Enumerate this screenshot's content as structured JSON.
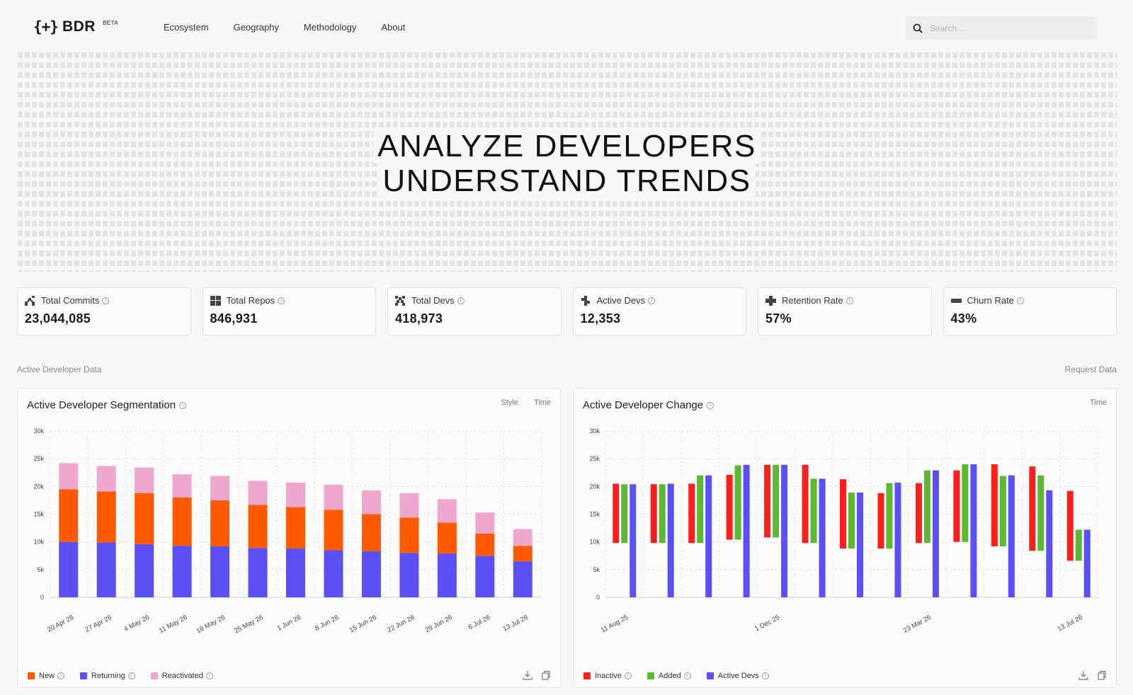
{
  "nav": {
    "logo_mark": "{+}",
    "logo_text": "BDR",
    "logo_badge": "BETA",
    "links": [
      "Ecosystem",
      "Geography",
      "Methodology",
      "About"
    ],
    "search_placeholder": "Search..."
  },
  "hero": {
    "line1": "ANALYZE DEVELOPERS",
    "line2": "UNDERSTAND TRENDS"
  },
  "stats": [
    {
      "label": "Total Commits",
      "value": "23,044,085",
      "icon": "commits-icon"
    },
    {
      "label": "Total Repos",
      "value": "846,931",
      "icon": "repos-icon"
    },
    {
      "label": "Total Devs",
      "value": "418,973",
      "icon": "devs-icon"
    },
    {
      "label": "Active Devs",
      "value": "12,353",
      "icon": "active-devs-icon"
    },
    {
      "label": "Retention Rate",
      "value": "57%",
      "icon": "retention-icon"
    },
    {
      "label": "Churn Rate",
      "value": "43%",
      "icon": "churn-icon"
    }
  ],
  "section": {
    "label": "Active Developer Data",
    "request": "Request Data"
  },
  "colors": {
    "new": "#ff5a00",
    "returning": "#5b50f5",
    "reactivated": "#eea8d0",
    "inactive": "#ff1e1e",
    "added": "#5db832",
    "active": "#5b50f5"
  },
  "cards": {
    "left": {
      "title": "Active Developer Segmentation",
      "ctrl_style": "Style",
      "ctrl_time": "Time",
      "legend": [
        "New",
        "Returning",
        "Reactivated"
      ]
    },
    "right": {
      "title": "Active Developer Change",
      "ctrl_time": "Time",
      "legend": [
        "Inactive",
        "Added",
        "Active Devs"
      ]
    }
  },
  "chart_data": [
    {
      "type": "bar",
      "stacked": true,
      "title": "Active Developer Segmentation",
      "categories": [
        "20 Apr 26",
        "27 Apr 26",
        "4 May 26",
        "11 May 26",
        "18 May 26",
        "25 May 26",
        "1 Jun 26",
        "8 Jun 26",
        "15 Jun 26",
        "22 Jun 26",
        "29 Jun 26",
        "6 Jul 26",
        "13 Jul 26"
      ],
      "series": [
        {
          "name": "Returning",
          "values": [
            10000,
            9900,
            9600,
            9300,
            9200,
            8900,
            8800,
            8500,
            8300,
            8000,
            7900,
            7500,
            6500
          ]
        },
        {
          "name": "New",
          "values": [
            9500,
            9200,
            9200,
            8700,
            8300,
            7800,
            7500,
            7300,
            6700,
            6400,
            5600,
            4000,
            2800
          ]
        },
        {
          "name": "Reactivated",
          "values": [
            4700,
            4600,
            4600,
            4200,
            4400,
            4300,
            4400,
            4500,
            4300,
            4400,
            4200,
            3800,
            3000
          ]
        }
      ],
      "ylim": [
        0,
        30000
      ],
      "yticks": [
        "0",
        "5k",
        "10k",
        "15k",
        "20k",
        "25k",
        "30k"
      ],
      "grid": true,
      "legend_position": "bottom-left"
    },
    {
      "type": "bar",
      "title": "Active Developer Change",
      "categories": [
        "11 Aug 25",
        "",
        "",
        "",
        "1 Dec 25",
        "",
        "",
        "",
        "23 Mar 26",
        "",
        "",
        "",
        "13 Jul 26"
      ],
      "series": [
        {
          "name": "Inactive",
          "ranges": [
            [
              9800,
              20500
            ],
            [
              9800,
              20400
            ],
            [
              9800,
              20500
            ],
            [
              10400,
              22100
            ],
            [
              10800,
              23900
            ],
            [
              9800,
              23900
            ],
            [
              8800,
              21300
            ],
            [
              8800,
              18800
            ],
            [
              9800,
              20600
            ],
            [
              10000,
              22900
            ],
            [
              9200,
              24000
            ],
            [
              8400,
              23600
            ],
            [
              6600,
              19200
            ]
          ]
        },
        {
          "name": "Added",
          "ranges": [
            [
              9800,
              20400
            ],
            [
              9800,
              20400
            ],
            [
              9800,
              22000
            ],
            [
              10400,
              23800
            ],
            [
              10800,
              23900
            ],
            [
              9800,
              21400
            ],
            [
              8800,
              18900
            ],
            [
              8800,
              20600
            ],
            [
              9800,
              22900
            ],
            [
              10000,
              24000
            ],
            [
              9200,
              21900
            ],
            [
              8400,
              22000
            ],
            [
              6600,
              12200
            ]
          ]
        },
        {
          "name": "Active Devs",
          "values": [
            20400,
            20500,
            22000,
            23900,
            23900,
            21400,
            18900,
            20700,
            22900,
            24000,
            22000,
            19300,
            12200
          ]
        }
      ],
      "ylim": [
        0,
        30000
      ],
      "yticks": [
        "0",
        "5k",
        "10k",
        "15k",
        "20k",
        "25k",
        "30k"
      ],
      "grid": true,
      "legend_position": "bottom-left"
    }
  ]
}
